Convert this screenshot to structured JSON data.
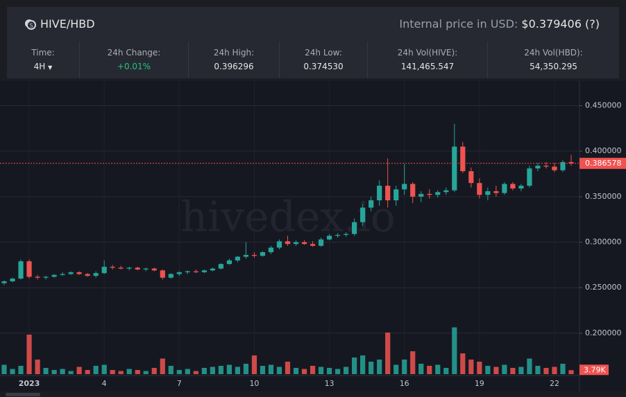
{
  "header": {
    "pair": "HIVE/HBD",
    "price_label": "Internal price in USD:",
    "price": "$0.379406",
    "help": "(?)"
  },
  "stats": [
    {
      "label": "Time:",
      "value": "4H"
    },
    {
      "label": "24h Change:",
      "value": "+0.01%"
    },
    {
      "label": "24h High:",
      "value": "0.396296"
    },
    {
      "label": "24h Low:",
      "value": "0.374530"
    },
    {
      "label": "24h Vol(HIVE):",
      "value": "141,465.547"
    },
    {
      "label": "24h Vol(HBD):",
      "value": "54,350.295"
    }
  ],
  "chart_data": {
    "type": "candlestick",
    "watermark": "hivedex.io",
    "up_color": "#26a69a",
    "down_color": "#ef5350",
    "xlim": [
      -0.5,
      69
    ],
    "ylim": [
      0.136,
      0.477
    ],
    "volume_ylim": [
      0,
      50000
    ],
    "xticks": [
      {
        "value": 3,
        "label": "2023"
      },
      {
        "value": 12,
        "label": "4"
      },
      {
        "value": 21,
        "label": "7"
      },
      {
        "value": 30,
        "label": "10"
      },
      {
        "value": 39,
        "label": "13"
      },
      {
        "value": 48,
        "label": "16"
      },
      {
        "value": 57,
        "label": "19"
      },
      {
        "value": 66,
        "label": "22"
      }
    ],
    "yticks": [
      {
        "value": 0.2,
        "label": "0.200000"
      },
      {
        "value": 0.25,
        "label": "0.250000"
      },
      {
        "value": 0.3,
        "label": "0.300000"
      },
      {
        "value": 0.35,
        "label": "0.350000"
      },
      {
        "value": 0.4,
        "label": "0.400000"
      },
      {
        "value": 0.45,
        "label": "0.450000"
      }
    ],
    "grid": true,
    "ohlc": [
      [
        0.255,
        0.258,
        0.253,
        0.257
      ],
      [
        0.257,
        0.261,
        0.256,
        0.26
      ],
      [
        0.26,
        0.281,
        0.259,
        0.279
      ],
      [
        0.279,
        0.281,
        0.26,
        0.262
      ],
      [
        0.262,
        0.264,
        0.259,
        0.261
      ],
      [
        0.261,
        0.263,
        0.259,
        0.262
      ],
      [
        0.262,
        0.265,
        0.261,
        0.264
      ],
      [
        0.264,
        0.267,
        0.263,
        0.265
      ],
      [
        0.265,
        0.268,
        0.264,
        0.267
      ],
      [
        0.267,
        0.268,
        0.264,
        0.265
      ],
      [
        0.265,
        0.266,
        0.262,
        0.263
      ],
      [
        0.263,
        0.268,
        0.261,
        0.266
      ],
      [
        0.266,
        0.28,
        0.265,
        0.273
      ],
      [
        0.273,
        0.275,
        0.27,
        0.272
      ],
      [
        0.272,
        0.274,
        0.27,
        0.271
      ],
      [
        0.271,
        0.273,
        0.269,
        0.272
      ],
      [
        0.272,
        0.273,
        0.269,
        0.27
      ],
      [
        0.27,
        0.272,
        0.268,
        0.271
      ],
      [
        0.271,
        0.272,
        0.268,
        0.269
      ],
      [
        0.269,
        0.27,
        0.259,
        0.261
      ],
      [
        0.261,
        0.266,
        0.26,
        0.265
      ],
      [
        0.265,
        0.268,
        0.263,
        0.267
      ],
      [
        0.267,
        0.269,
        0.265,
        0.268
      ],
      [
        0.268,
        0.27,
        0.266,
        0.267
      ],
      [
        0.267,
        0.27,
        0.266,
        0.269
      ],
      [
        0.269,
        0.272,
        0.268,
        0.271
      ],
      [
        0.271,
        0.277,
        0.27,
        0.276
      ],
      [
        0.276,
        0.282,
        0.275,
        0.28
      ],
      [
        0.28,
        0.285,
        0.278,
        0.284
      ],
      [
        0.284,
        0.3,
        0.282,
        0.286
      ],
      [
        0.286,
        0.289,
        0.283,
        0.285
      ],
      [
        0.285,
        0.29,
        0.284,
        0.289
      ],
      [
        0.289,
        0.296,
        0.287,
        0.294
      ],
      [
        0.294,
        0.303,
        0.292,
        0.301
      ],
      [
        0.301,
        0.307,
        0.296,
        0.298
      ],
      [
        0.298,
        0.302,
        0.296,
        0.3
      ],
      [
        0.3,
        0.302,
        0.297,
        0.298
      ],
      [
        0.298,
        0.301,
        0.295,
        0.296
      ],
      [
        0.296,
        0.305,
        0.295,
        0.303
      ],
      [
        0.303,
        0.309,
        0.302,
        0.307
      ],
      [
        0.307,
        0.31,
        0.305,
        0.308
      ],
      [
        0.308,
        0.311,
        0.306,
        0.309
      ],
      [
        0.309,
        0.326,
        0.307,
        0.322
      ],
      [
        0.322,
        0.342,
        0.318,
        0.338
      ],
      [
        0.338,
        0.35,
        0.334,
        0.346
      ],
      [
        0.346,
        0.368,
        0.34,
        0.362
      ],
      [
        0.362,
        0.392,
        0.338,
        0.346
      ],
      [
        0.346,
        0.362,
        0.34,
        0.358
      ],
      [
        0.358,
        0.386,
        0.352,
        0.364
      ],
      [
        0.364,
        0.366,
        0.343,
        0.35
      ],
      [
        0.35,
        0.356,
        0.344,
        0.353
      ],
      [
        0.353,
        0.358,
        0.348,
        0.352
      ],
      [
        0.352,
        0.357,
        0.349,
        0.355
      ],
      [
        0.355,
        0.36,
        0.352,
        0.357
      ],
      [
        0.357,
        0.43,
        0.355,
        0.405
      ],
      [
        0.405,
        0.41,
        0.376,
        0.378
      ],
      [
        0.378,
        0.382,
        0.36,
        0.365
      ],
      [
        0.365,
        0.37,
        0.348,
        0.352
      ],
      [
        0.352,
        0.36,
        0.346,
        0.356
      ],
      [
        0.356,
        0.362,
        0.35,
        0.354
      ],
      [
        0.354,
        0.366,
        0.352,
        0.364
      ],
      [
        0.364,
        0.366,
        0.357,
        0.359
      ],
      [
        0.359,
        0.364,
        0.356,
        0.362
      ],
      [
        0.362,
        0.384,
        0.36,
        0.381
      ],
      [
        0.381,
        0.387,
        0.378,
        0.384
      ],
      [
        0.384,
        0.388,
        0.381,
        0.383
      ],
      [
        0.383,
        0.387,
        0.377,
        0.379
      ],
      [
        0.379,
        0.39,
        0.377,
        0.388
      ],
      [
        0.388,
        0.396,
        0.384,
        0.386578
      ]
    ],
    "volumes": [
      9000,
      5000,
      8000,
      38000,
      14000,
      6000,
      4000,
      5000,
      3000,
      7000,
      4000,
      8000,
      9000,
      4000,
      3000,
      5000,
      4000,
      3000,
      6000,
      15000,
      8000,
      4000,
      5000,
      3000,
      6000,
      7000,
      8000,
      9000,
      7000,
      10000,
      18000,
      8000,
      9000,
      7000,
      12000,
      6000,
      5000,
      8000,
      7000,
      6000,
      5000,
      7000,
      16000,
      18000,
      12000,
      14000,
      40000,
      9000,
      14000,
      22000,
      10000,
      8000,
      9000,
      6000,
      45000,
      20000,
      14000,
      12000,
      8000,
      7000,
      9000,
      6000,
      7000,
      15000,
      8000,
      6000,
      7000,
      10000,
      3790
    ],
    "volume_label": "3.79K"
  }
}
